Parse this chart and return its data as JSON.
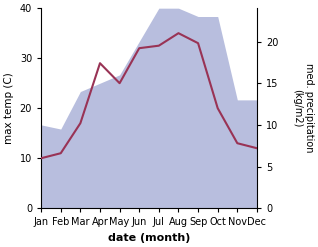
{
  "months": [
    "Jan",
    "Feb",
    "Mar",
    "Apr",
    "May",
    "Jun",
    "Jul",
    "Aug",
    "Sep",
    "Oct",
    "Nov",
    "Dec"
  ],
  "max_temp": [
    10.0,
    11.0,
    17.0,
    29.0,
    25.0,
    32.0,
    32.5,
    35.0,
    33.0,
    20.0,
    13.0,
    12.0
  ],
  "precipitation": [
    10.0,
    9.5,
    14.0,
    15.0,
    16.0,
    20.0,
    24.0,
    24.0,
    23.0,
    23.0,
    13.0,
    13.0
  ],
  "temp_color": "#993355",
  "precip_fill_color": "#b8bede",
  "temp_ylim": [
    0,
    40
  ],
  "precip_ylim": [
    0,
    24
  ],
  "precip_yticks": [
    0,
    5,
    10,
    15,
    20
  ],
  "temp_yticks": [
    0,
    10,
    20,
    30,
    40
  ],
  "xlabel": "date (month)",
  "ylabel_left": "max temp (C)",
  "ylabel_right": "med. precipitation\n(kg/m2)",
  "figsize": [
    3.18,
    2.47
  ],
  "dpi": 100
}
